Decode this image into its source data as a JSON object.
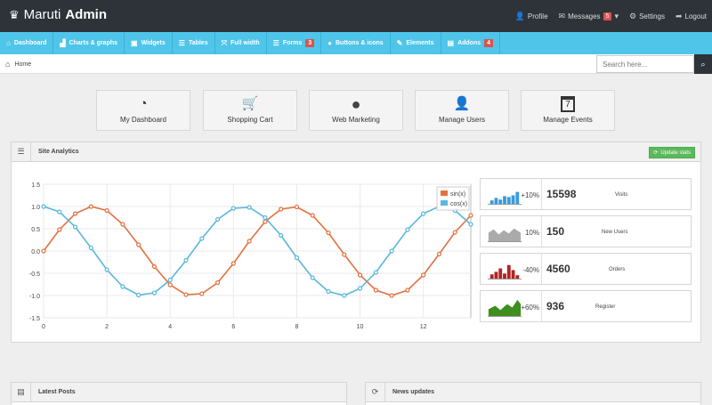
{
  "header": {
    "brand_light": "Maruti",
    "brand_bold": "Admin",
    "profile": "Profile",
    "messages": "Messages",
    "messages_count": "5",
    "settings": "Settings",
    "logout": "Logout"
  },
  "nav": {
    "items": [
      {
        "label": "Dashboard",
        "icon": "home-icon",
        "glyph": "⌂"
      },
      {
        "label": "Charts & graphs",
        "icon": "bar-chart-icon",
        "glyph": "▟"
      },
      {
        "label": "Widgets",
        "icon": "widgets-icon",
        "glyph": "▣"
      },
      {
        "label": "Tables",
        "icon": "list-icon",
        "glyph": "☰"
      },
      {
        "label": "Full width",
        "icon": "fullscreen-icon",
        "glyph": "⤧"
      },
      {
        "label": "Forms",
        "icon": "forms-icon",
        "glyph": "☰",
        "badge": "3"
      },
      {
        "label": "Buttons & icons",
        "icon": "tint-icon",
        "glyph": "●"
      },
      {
        "label": "Elements",
        "icon": "pencil-icon",
        "glyph": "✎"
      },
      {
        "label": "Addons",
        "icon": "file-icon",
        "glyph": "▤",
        "badge": "4"
      }
    ]
  },
  "breadcrumb": {
    "home": "Home"
  },
  "search": {
    "placeholder": "Search here..."
  },
  "quick_actions": [
    {
      "label": "My Dashboard",
      "icon": "dashboard-icon",
      "glyph": "◔"
    },
    {
      "label": "Shopping Cart",
      "icon": "shopping-cart-icon",
      "glyph": "🛒"
    },
    {
      "label": "Web Marketing",
      "icon": "globe-icon",
      "glyph": "●"
    },
    {
      "label": "Manage Users",
      "icon": "user-icon",
      "glyph": "👤"
    },
    {
      "label": "Manage Events",
      "icon": "calendar-icon",
      "glyph": "7"
    }
  ],
  "analytics": {
    "title": "Site Analytics",
    "update_button": "Update stats"
  },
  "stats": [
    {
      "pct": "+10%",
      "value": "15598",
      "label": "Visits",
      "color": "#3a9bd9",
      "kind": "bars"
    },
    {
      "pct": "10%",
      "value": "150",
      "label": "New Users",
      "color": "#aaaaaa",
      "kind": "area"
    },
    {
      "pct": "-40%",
      "value": "4560",
      "label": "Orders",
      "color": "#b22222",
      "kind": "bars"
    },
    {
      "pct": "+60%",
      "value": "936",
      "label": "Register",
      "color": "#3f8f1f",
      "kind": "area"
    }
  ],
  "bottom_panels": {
    "latest_posts": "Latest Posts",
    "news_updates": "News updates"
  },
  "chart_data": {
    "type": "line",
    "title": "",
    "xlabel": "",
    "ylabel": "",
    "xlim": [
      0,
      13.5
    ],
    "ylim": [
      -1.5,
      1.5
    ],
    "x_ticks": [
      0,
      2,
      4,
      6,
      8,
      10,
      12
    ],
    "y_ticks": [
      1.5,
      1.0,
      0.5,
      0.0,
      -0.5,
      -1.0,
      -1.5
    ],
    "y_tick_labels": [
      "1.5",
      "1.0",
      "0.5",
      "0.0",
      "-0.5",
      "-1.0",
      "-1.5"
    ],
    "grid": true,
    "legend": "top-right",
    "x": [
      0,
      0.5,
      1,
      1.5,
      2,
      2.5,
      3,
      3.5,
      4,
      4.5,
      5,
      5.5,
      6,
      6.5,
      7,
      7.5,
      8,
      8.5,
      9,
      9.5,
      10,
      10.5,
      11,
      11.5,
      12,
      12.5,
      13,
      13.5
    ],
    "series": [
      {
        "name": "sin(x)",
        "color": "#e2713f",
        "values": [
          0,
          0.48,
          0.84,
          1.0,
          0.91,
          0.6,
          0.14,
          -0.35,
          -0.76,
          -0.98,
          -0.96,
          -0.71,
          -0.28,
          0.22,
          0.66,
          0.94,
          0.99,
          0.8,
          0.41,
          -0.08,
          -0.54,
          -0.88,
          -1.0,
          -0.88,
          -0.54,
          -0.07,
          0.42,
          0.8
        ]
      },
      {
        "name": "cos(x)",
        "color": "#5ab7dc",
        "values": [
          1.0,
          0.88,
          0.54,
          0.07,
          -0.42,
          -0.8,
          -0.99,
          -0.94,
          -0.65,
          -0.21,
          0.28,
          0.71,
          0.96,
          0.98,
          0.75,
          0.35,
          -0.15,
          -0.6,
          -0.91,
          -1.0,
          -0.84,
          -0.48,
          0.0,
          0.48,
          0.84,
          1.0,
          0.91,
          0.6
        ]
      }
    ]
  }
}
